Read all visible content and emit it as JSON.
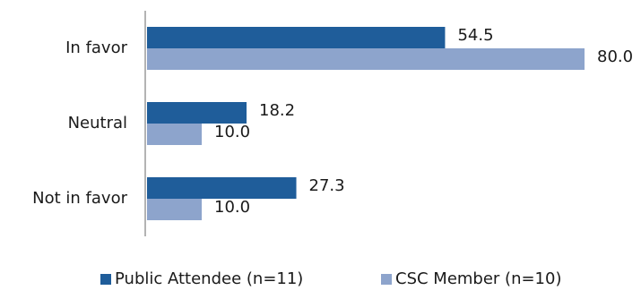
{
  "chart_data": {
    "type": "bar",
    "orientation": "horizontal",
    "categories": [
      "In favor",
      "Neutral",
      "Not in favor"
    ],
    "series": [
      {
        "name": "Public Attendee (n=11)",
        "values": [
          54.5,
          18.2,
          27.3
        ],
        "color": "#1f5d9a"
      },
      {
        "name": "CSC Member (n=10)",
        "values": [
          80.0,
          10.0,
          10.0
        ],
        "color": "#8da4cc"
      }
    ],
    "value_labels": [
      [
        "54.5",
        "18.2",
        "27.3"
      ],
      [
        "80.0",
        "10.0",
        "10.0"
      ]
    ],
    "title": "",
    "xlabel": "",
    "ylabel": "",
    "xlim": [
      0,
      100
    ],
    "grid": false,
    "legend": "bottom-center"
  }
}
